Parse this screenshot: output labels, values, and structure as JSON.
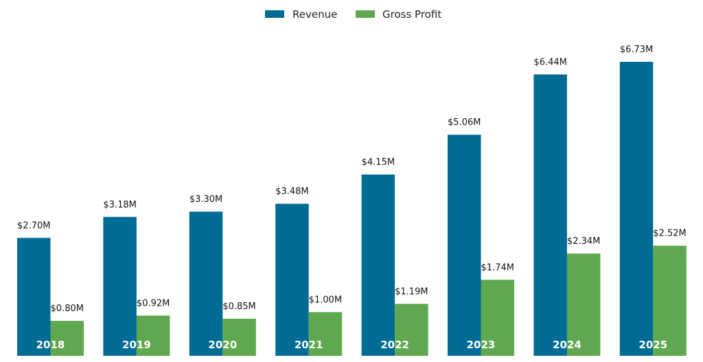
{
  "chart_data": {
    "type": "bar",
    "categories": [
      "2018",
      "2019",
      "2020",
      "2021",
      "2022",
      "2023",
      "2024",
      "2025"
    ],
    "series": [
      {
        "name": "Revenue",
        "color": "#006b94",
        "values": [
          2.7,
          3.18,
          3.3,
          3.48,
          4.15,
          5.06,
          6.44,
          6.73
        ],
        "labels": [
          "$2.70M",
          "$3.18M",
          "$3.30M",
          "$3.48M",
          "$4.15M",
          "$5.06M",
          "$6.44M",
          "$6.73M"
        ]
      },
      {
        "name": "Gross Profit",
        "color": "#5fa84f",
        "values": [
          0.8,
          0.92,
          0.85,
          1.0,
          1.19,
          1.74,
          2.34,
          2.52
        ],
        "labels": [
          "$0.80M",
          "$0.92M",
          "$0.85M",
          "$1.00M",
          "$1.19M",
          "$1.74M",
          "$2.34M",
          "$2.52M"
        ]
      }
    ],
    "ylim": [
      0,
      7.0
    ],
    "grid": false,
    "legend_position": "top-center",
    "category_labels_position": "inside-bottom"
  }
}
